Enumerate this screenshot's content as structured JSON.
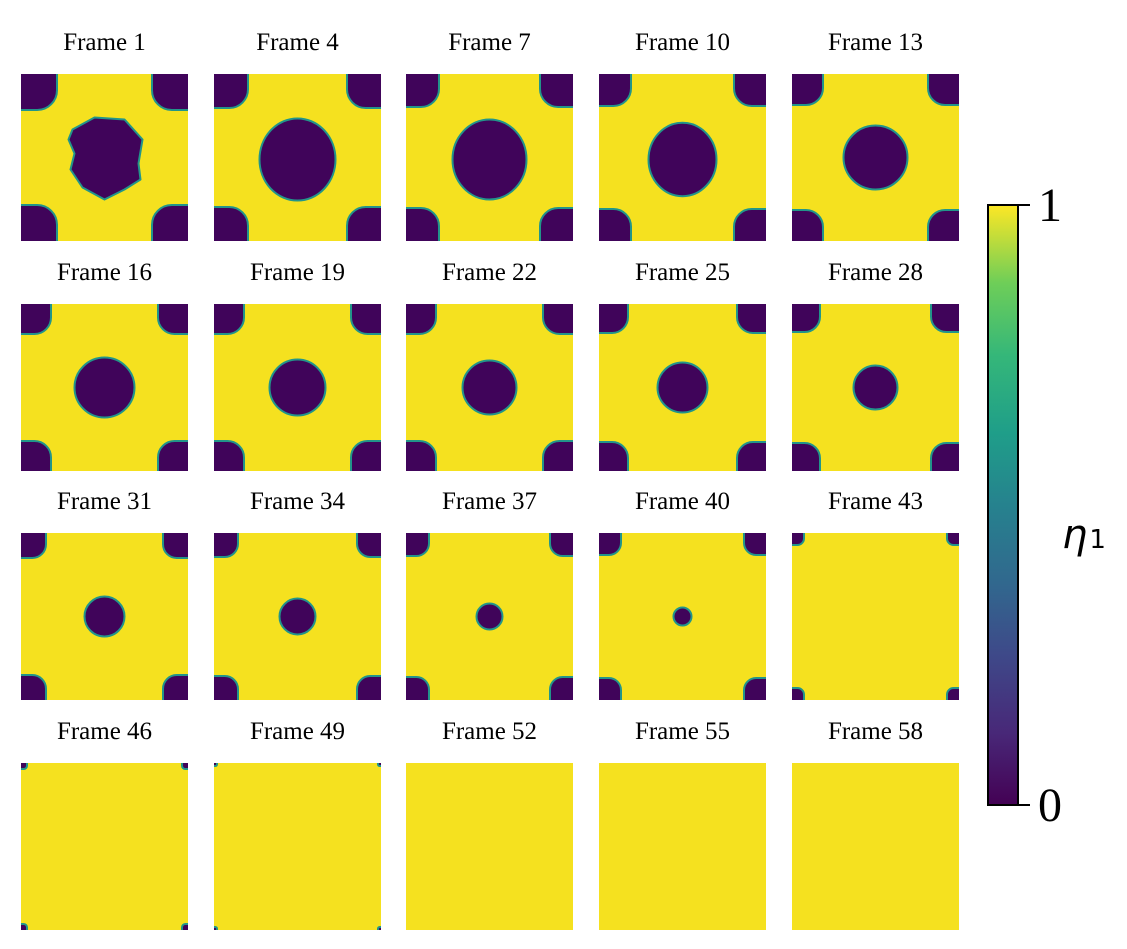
{
  "figure": {
    "panel_titles": [
      "Frame 1",
      "Frame 4",
      "Frame 7",
      "Frame 10",
      "Frame 13",
      "Frame 16",
      "Frame 19",
      "Frame 22",
      "Frame 25",
      "Frame 28",
      "Frame 31",
      "Frame 34",
      "Frame 37",
      "Frame 40",
      "Frame 43",
      "Frame 46",
      "Frame 49",
      "Frame 52",
      "Frame 55",
      "Frame 58"
    ],
    "colorbar": {
      "label_symbol": "η",
      "label_subscript": "1",
      "max_tick": "1",
      "min_tick": "0",
      "colormap": "viridis"
    },
    "colors": {
      "phase_high": "#f5e11f",
      "phase_low": "#40045a",
      "interface": "#22958a"
    }
  }
}
